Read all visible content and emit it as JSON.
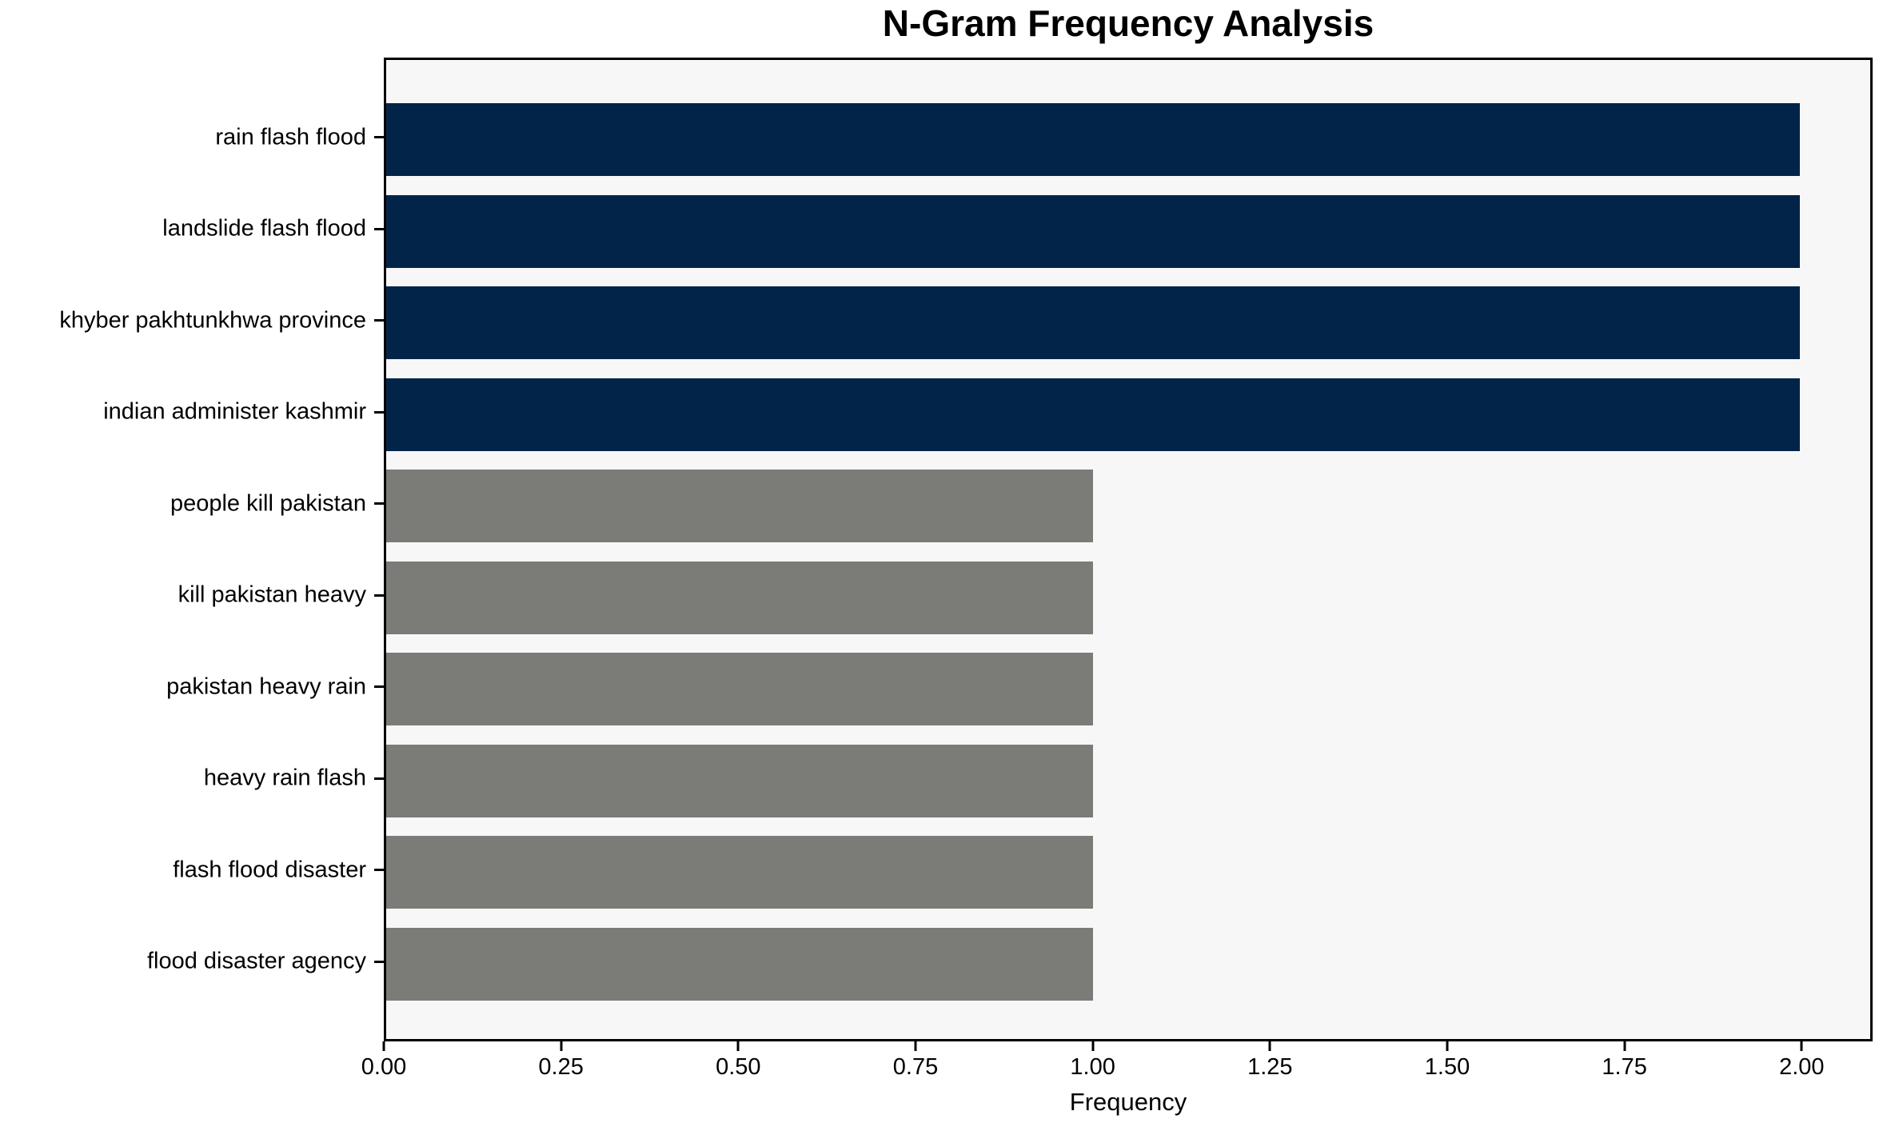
{
  "chart_data": {
    "type": "bar",
    "orientation": "horizontal",
    "title": "N-Gram Frequency Analysis",
    "xlabel": "Frequency",
    "ylabel": "",
    "categories": [
      "rain flash flood",
      "landslide flash flood",
      "khyber pakhtunkhwa province",
      "indian administer kashmir",
      "people kill pakistan",
      "kill pakistan heavy",
      "pakistan heavy rain",
      "heavy rain flash",
      "flash flood disaster",
      "flood disaster agency"
    ],
    "values": [
      2,
      2,
      2,
      2,
      1,
      1,
      1,
      1,
      1,
      1
    ],
    "bar_colors": [
      "#032449",
      "#032449",
      "#032449",
      "#032449",
      "#7b7b77",
      "#7b7b77",
      "#7b7b77",
      "#7b7b77",
      "#7b7b77",
      "#7b7b77"
    ],
    "xlim": [
      0,
      2.1
    ],
    "xticks": [
      {
        "value": 0.0,
        "label": "0.00"
      },
      {
        "value": 0.25,
        "label": "0.25"
      },
      {
        "value": 0.5,
        "label": "0.50"
      },
      {
        "value": 0.75,
        "label": "0.75"
      },
      {
        "value": 1.0,
        "label": "1.00"
      },
      {
        "value": 1.25,
        "label": "1.25"
      },
      {
        "value": 1.5,
        "label": "1.50"
      },
      {
        "value": 1.75,
        "label": "1.75"
      },
      {
        "value": 2.0,
        "label": "2.00"
      }
    ],
    "grid": false,
    "legend": null,
    "colors": {
      "highlight_bar": "#032449",
      "base_bar": "#7b7b77",
      "plot_background": "#f7f7f7",
      "figure_background": "#ffffff",
      "spine": "#000000",
      "text": "#000000"
    }
  }
}
